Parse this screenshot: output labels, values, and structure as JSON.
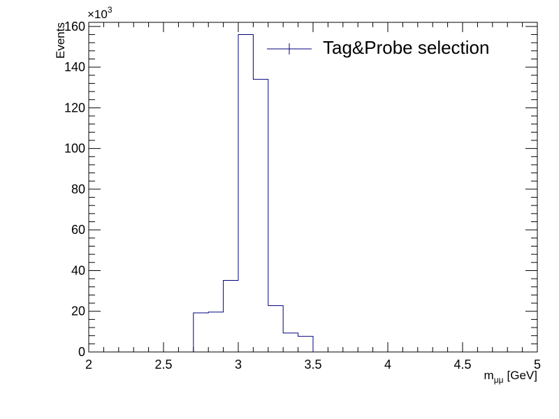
{
  "chart_data": {
    "type": "histogram",
    "title": "",
    "xlabel": "m",
    "xlabel_subscript": "μμ",
    "xlabel_unit": "[GeV]",
    "ylabel": "Events",
    "y_multiplier": "×10",
    "y_multiplier_exponent": "3",
    "xlim": [
      2,
      5
    ],
    "ylim": [
      0,
      162
    ],
    "x_ticks": [
      2,
      2.5,
      3,
      3.5,
      4,
      4.5,
      5
    ],
    "x_tick_labels": [
      "2",
      "2.5",
      "3",
      "3.5",
      "4",
      "4.5",
      "5"
    ],
    "y_ticks": [
      0,
      20,
      40,
      60,
      80,
      100,
      120,
      140,
      160
    ],
    "y_tick_labels": [
      "0",
      "20",
      "40",
      "60",
      "80",
      "100",
      "120",
      "140",
      "160"
    ],
    "bin_edges": [
      2.7,
      2.8,
      2.9,
      3.0,
      3.1,
      3.2,
      3.3,
      3.4,
      3.5
    ],
    "series": [
      {
        "name": "Tag&Probe selection",
        "color": "#000080",
        "values": [
          19.2,
          19.6,
          35.2,
          156.0,
          134.0,
          22.8,
          9.3,
          7.7
        ]
      }
    ],
    "legend_position": "top-right",
    "grid": false
  }
}
